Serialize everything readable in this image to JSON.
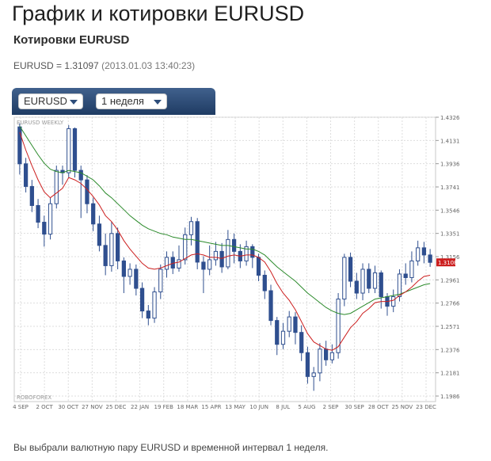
{
  "page": {
    "title": "График и котировки EURUSD",
    "section_title": "Котировки EURUSD",
    "quote": {
      "label": "EURUSD = 1.31097",
      "timestamp": "(2013.01.03 13:40:23)"
    },
    "footer": "Вы выбрали валютную пару EURUSD и временной интервал 1 неделя."
  },
  "toolbar": {
    "pair_select": {
      "value": "EURUSD"
    },
    "interval_select": {
      "value": "1 неделя"
    }
  },
  "chart_data": {
    "type": "candlestick",
    "title": "EURUSD WEEKLY",
    "watermark": "ROBOFOREX",
    "ylim": [
      1.1986,
      1.4326
    ],
    "y_ticks": [
      "1.4326",
      "1.4131",
      "1.3936",
      "1.3741",
      "1.3546",
      "1.3351",
      "1.3156",
      "1.2961",
      "1.2766",
      "1.2571",
      "1.2376",
      "1.2181",
      "1.1986"
    ],
    "x_tick_labels": [
      "4 SEP",
      "2 OCT",
      "30 OCT",
      "27 NOV",
      "25 DEC",
      "22 JAN",
      "19 FEB",
      "18 MAR",
      "15 APR",
      "13 MAY",
      "10 JUN",
      "8 JUL",
      "5 AUG",
      "2 SEP",
      "30 SEP",
      "28 OCT",
      "25 NOV",
      "23 DEC"
    ],
    "current_price": "1.3108",
    "colors": {
      "bull": "#ffffff",
      "bear": "#2f4f8f",
      "wick": "#2f4f8f",
      "ma_fast": "#cc1f1f",
      "ma_slow": "#2b8a2b",
      "price_tag": "#cc1f1f",
      "grid": "#dddddd"
    },
    "candles": [
      [
        1.4245,
        1.3935,
        1.4275,
        1.3845
      ],
      [
        1.3935,
        1.3745,
        1.3985,
        1.3695
      ],
      [
        1.3745,
        1.3585,
        1.38,
        1.353
      ],
      [
        1.3585,
        1.3445,
        1.364,
        1.3395
      ],
      [
        1.3445,
        1.3345,
        1.35,
        1.324
      ],
      [
        1.3345,
        1.36,
        1.365,
        1.33
      ],
      [
        1.36,
        1.388,
        1.392,
        1.356
      ],
      [
        1.388,
        1.386,
        1.392,
        1.376
      ],
      [
        1.386,
        1.423,
        1.426,
        1.382
      ],
      [
        1.423,
        1.388,
        1.424,
        1.382
      ],
      [
        1.388,
        1.38,
        1.392,
        1.348
      ],
      [
        1.38,
        1.36,
        1.384,
        1.352
      ],
      [
        1.36,
        1.343,
        1.365,
        1.337
      ],
      [
        1.343,
        1.325,
        1.35,
        1.32
      ],
      [
        1.325,
        1.308,
        1.335,
        1.3
      ],
      [
        1.308,
        1.335,
        1.345,
        1.303
      ],
      [
        1.335,
        1.312,
        1.34,
        1.305
      ],
      [
        1.312,
        1.299,
        1.315,
        1.285
      ],
      [
        1.299,
        1.305,
        1.31,
        1.292
      ],
      [
        1.305,
        1.289,
        1.309,
        1.283
      ],
      [
        1.289,
        1.27,
        1.294,
        1.264
      ],
      [
        1.27,
        1.264,
        1.275,
        1.258
      ],
      [
        1.264,
        1.286,
        1.29,
        1.26
      ],
      [
        1.286,
        1.305,
        1.309,
        1.28
      ],
      [
        1.305,
        1.315,
        1.32,
        1.298
      ],
      [
        1.315,
        1.306,
        1.32,
        1.301
      ],
      [
        1.306,
        1.313,
        1.325,
        1.303
      ],
      [
        1.313,
        1.334,
        1.34,
        1.309
      ],
      [
        1.334,
        1.345,
        1.349,
        1.325
      ],
      [
        1.345,
        1.311,
        1.348,
        1.305
      ],
      [
        1.311,
        1.305,
        1.316,
        1.285
      ],
      [
        1.305,
        1.313,
        1.325,
        1.3
      ],
      [
        1.313,
        1.32,
        1.328,
        1.308
      ],
      [
        1.32,
        1.307,
        1.327,
        1.302
      ],
      [
        1.307,
        1.33,
        1.338,
        1.305
      ],
      [
        1.33,
        1.32,
        1.335,
        1.31
      ],
      [
        1.32,
        1.312,
        1.326,
        1.306
      ],
      [
        1.312,
        1.324,
        1.329,
        1.308
      ],
      [
        1.324,
        1.315,
        1.326,
        1.306
      ],
      [
        1.315,
        1.3,
        1.318,
        1.295
      ],
      [
        1.3,
        1.287,
        1.304,
        1.28
      ],
      [
        1.287,
        1.262,
        1.292,
        1.258
      ],
      [
        1.262,
        1.242,
        1.265,
        1.233
      ],
      [
        1.242,
        1.253,
        1.26,
        1.238
      ],
      [
        1.253,
        1.265,
        1.27,
        1.248
      ],
      [
        1.265,
        1.252,
        1.269,
        1.242
      ],
      [
        1.252,
        1.235,
        1.258,
        1.228
      ],
      [
        1.235,
        1.215,
        1.24,
        1.209
      ],
      [
        1.215,
        1.218,
        1.223,
        1.203
      ],
      [
        1.218,
        1.238,
        1.243,
        1.211
      ],
      [
        1.238,
        1.229,
        1.245,
        1.224
      ],
      [
        1.229,
        1.235,
        1.242,
        1.226
      ],
      [
        1.235,
        1.28,
        1.285,
        1.23
      ],
      [
        1.28,
        1.315,
        1.318,
        1.274
      ],
      [
        1.315,
        1.295,
        1.319,
        1.29
      ],
      [
        1.295,
        1.285,
        1.302,
        1.28
      ],
      [
        1.285,
        1.305,
        1.31,
        1.279
      ],
      [
        1.305,
        1.289,
        1.31,
        1.285
      ],
      [
        1.289,
        1.302,
        1.308,
        1.285
      ],
      [
        1.302,
        1.282,
        1.304,
        1.272
      ],
      [
        1.282,
        1.274,
        1.285,
        1.266
      ],
      [
        1.274,
        1.282,
        1.288,
        1.269
      ],
      [
        1.282,
        1.301,
        1.305,
        1.278
      ],
      [
        1.301,
        1.298,
        1.31,
        1.292
      ],
      [
        1.298,
        1.312,
        1.32,
        1.294
      ],
      [
        1.312,
        1.323,
        1.329,
        1.308
      ],
      [
        1.323,
        1.317,
        1.328,
        1.31
      ],
      [
        1.317,
        1.3108,
        1.322,
        1.307
      ]
    ],
    "ma_fast": [
      1.42,
      1.405,
      1.392,
      1.38,
      1.37,
      1.365,
      1.369,
      1.373,
      1.382,
      1.38,
      1.377,
      1.372,
      1.366,
      1.359,
      1.35,
      1.345,
      1.338,
      1.329,
      1.322,
      1.316,
      1.31,
      1.306,
      1.305,
      1.306,
      1.308,
      1.31,
      1.311,
      1.314,
      1.317,
      1.318,
      1.317,
      1.315,
      1.315,
      1.314,
      1.316,
      1.317,
      1.316,
      1.317,
      1.317,
      1.315,
      1.311,
      1.303,
      1.293,
      1.285,
      1.279,
      1.271,
      1.261,
      1.251,
      1.244,
      1.241,
      1.238,
      1.237,
      1.24,
      1.248,
      1.256,
      1.261,
      1.268,
      1.272,
      1.277,
      1.278,
      1.278,
      1.279,
      1.283,
      1.286,
      1.29,
      1.295,
      1.299,
      1.3
    ],
    "ma_slow": [
      1.425,
      1.417,
      1.409,
      1.401,
      1.394,
      1.389,
      1.387,
      1.386,
      1.388,
      1.387,
      1.386,
      1.383,
      1.38,
      1.375,
      1.369,
      1.365,
      1.36,
      1.355,
      1.35,
      1.346,
      1.342,
      1.339,
      1.337,
      1.335,
      1.334,
      1.332,
      1.331,
      1.33,
      1.33,
      1.329,
      1.328,
      1.327,
      1.326,
      1.325,
      1.325,
      1.324,
      1.323,
      1.322,
      1.322,
      1.32,
      1.317,
      1.312,
      1.307,
      1.303,
      1.299,
      1.295,
      1.29,
      1.285,
      1.281,
      1.277,
      1.273,
      1.27,
      1.268,
      1.267,
      1.268,
      1.271,
      1.274,
      1.277,
      1.28,
      1.281,
      1.282,
      1.283,
      1.284,
      1.286,
      1.288,
      1.29,
      1.292,
      1.293
    ]
  }
}
